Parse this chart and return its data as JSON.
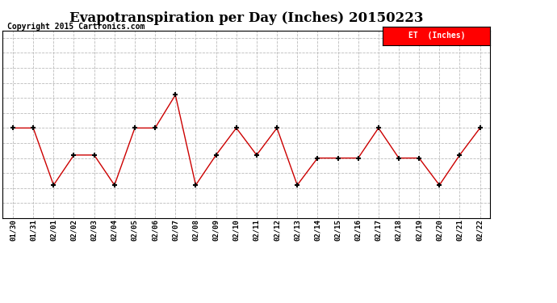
{
  "title": "Evapotranspiration per Day (Inches) 20150223",
  "copyright": "Copyright 2015 Cartronics.com",
  "legend_label": "ET  (Inches)",
  "legend_bg": "#ff0000",
  "legend_text_color": "#ffffff",
  "x_labels": [
    "01/30",
    "01/31",
    "02/01",
    "02/02",
    "02/03",
    "02/04",
    "02/05",
    "02/06",
    "02/07",
    "02/08",
    "02/09",
    "02/10",
    "02/11",
    "02/12",
    "02/13",
    "02/14",
    "02/15",
    "02/16",
    "02/17",
    "02/18",
    "02/19",
    "02/20",
    "02/21",
    "02/22"
  ],
  "y_values": [
    0.03,
    0.03,
    0.011,
    0.021,
    0.021,
    0.011,
    0.03,
    0.03,
    0.041,
    0.011,
    0.021,
    0.03,
    0.021,
    0.03,
    0.011,
    0.02,
    0.02,
    0.02,
    0.03,
    0.02,
    0.02,
    0.011,
    0.021,
    0.03
  ],
  "line_color": "#cc0000",
  "marker_color": "#000000",
  "ylim": [
    0.0,
    0.0625
  ],
  "yticks": [
    0.0,
    0.005,
    0.01,
    0.015,
    0.02,
    0.025,
    0.03,
    0.035,
    0.04,
    0.045,
    0.05,
    0.055,
    0.06
  ],
  "bg_color": "#ffffff",
  "grid_color": "#bbbbbb",
  "title_fontsize": 12,
  "copyright_fontsize": 7
}
